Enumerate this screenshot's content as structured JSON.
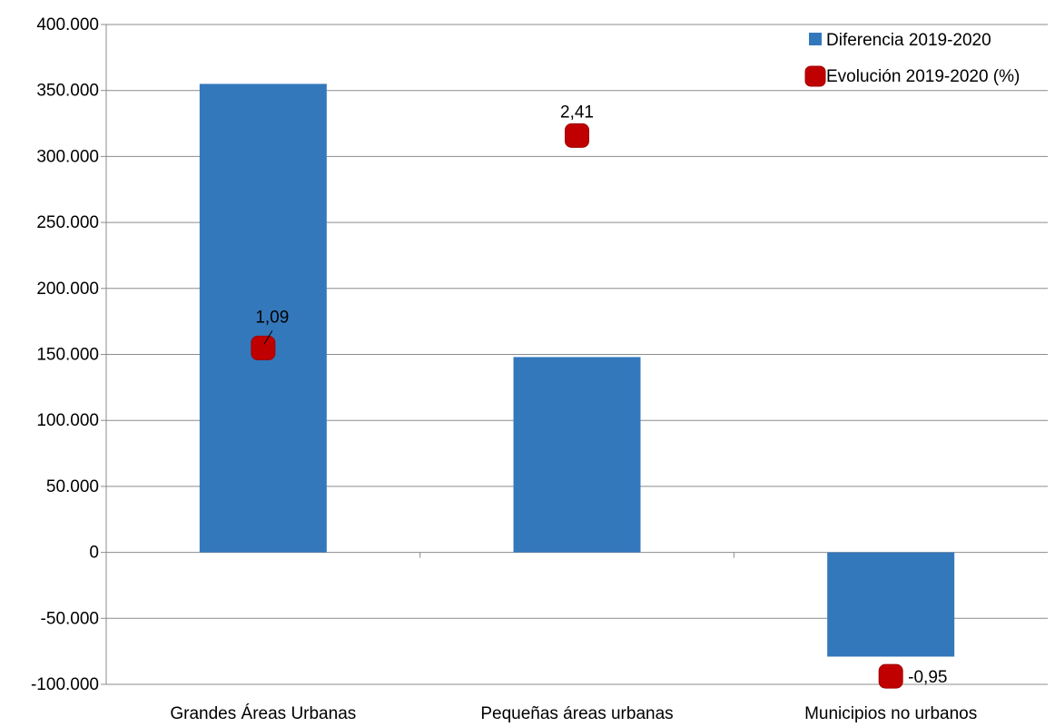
{
  "chart_data": {
    "type": "bar",
    "categories": [
      "Grandes Áreas Urbanas",
      "Pequeñas áreas urbanas",
      "Municipios no urbanos"
    ],
    "ylim": [
      -100000,
      400000
    ],
    "y_ticks": [
      {
        "value": 400000,
        "label": "400.000"
      },
      {
        "value": 350000,
        "label": "350.000"
      },
      {
        "value": 300000,
        "label": "300.000"
      },
      {
        "value": 250000,
        "label": "250.000"
      },
      {
        "value": 200000,
        "label": "200.000"
      },
      {
        "value": 150000,
        "label": "150.000"
      },
      {
        "value": 100000,
        "label": "100.000"
      },
      {
        "value": 50000,
        "label": "50.000"
      },
      {
        "value": 0,
        "label": "0"
      },
      {
        "value": -50000,
        "label": "-50.000"
      },
      {
        "value": -100000,
        "label": "-100.000"
      }
    ],
    "grid": true,
    "legend_position": "top-right",
    "series": [
      {
        "name": "Diferencia 2019-2020",
        "kind": "bar",
        "color": "#3478BC",
        "values": [
          355000,
          148000,
          -79000
        ]
      },
      {
        "name": "Evolución 2019-2020 (%)",
        "kind": "marker",
        "color": "#C00000",
        "values": [
          1.09,
          2.41,
          -0.95
        ],
        "labels": [
          "1,09",
          "2,41",
          "-0,95"
        ]
      }
    ],
    "secondary_axis_range": [
      -1,
      3.1
    ]
  }
}
